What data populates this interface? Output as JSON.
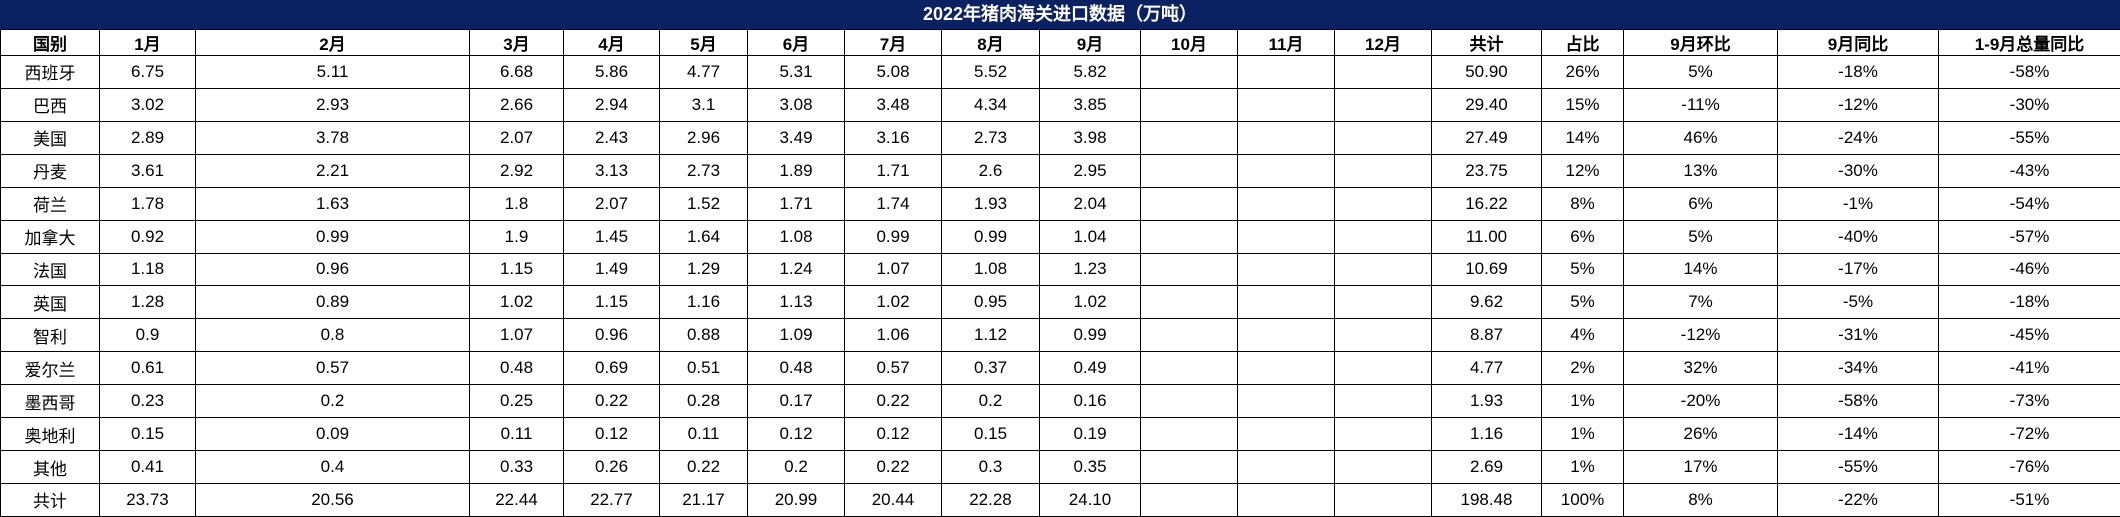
{
  "title": "2022年猪肉海关进口数据（万吨）",
  "colors": {
    "title_bg": "#0b2161",
    "title_text": "#ffffff",
    "grid_border": "#000000",
    "cell_bg": "#ffffff",
    "cell_text": "#000000"
  },
  "table": {
    "headers": [
      "国别",
      "1月",
      "2月",
      "3月",
      "4月",
      "5月",
      "6月",
      "7月",
      "8月",
      "9月",
      "10月",
      "11月",
      "12月",
      "共计",
      "占比",
      "9月环比",
      "9月同比",
      "1-9月总量同比"
    ],
    "rows": [
      [
        "西班牙",
        "6.75",
        "5.11",
        "6.68",
        "5.86",
        "4.77",
        "5.31",
        "5.08",
        "5.52",
        "5.82",
        "",
        "",
        "",
        "50.90",
        "26%",
        "5%",
        "-18%",
        "-58%"
      ],
      [
        "巴西",
        "3.02",
        "2.93",
        "2.66",
        "2.94",
        "3.1",
        "3.08",
        "3.48",
        "4.34",
        "3.85",
        "",
        "",
        "",
        "29.40",
        "15%",
        "-11%",
        "-12%",
        "-30%"
      ],
      [
        "美国",
        "2.89",
        "3.78",
        "2.07",
        "2.43",
        "2.96",
        "3.49",
        "3.16",
        "2.73",
        "3.98",
        "",
        "",
        "",
        "27.49",
        "14%",
        "46%",
        "-24%",
        "-55%"
      ],
      [
        "丹麦",
        "3.61",
        "2.21",
        "2.92",
        "3.13",
        "2.73",
        "1.89",
        "1.71",
        "2.6",
        "2.95",
        "",
        "",
        "",
        "23.75",
        "12%",
        "13%",
        "-30%",
        "-43%"
      ],
      [
        "荷兰",
        "1.78",
        "1.63",
        "1.8",
        "2.07",
        "1.52",
        "1.71",
        "1.74",
        "1.93",
        "2.04",
        "",
        "",
        "",
        "16.22",
        "8%",
        "6%",
        "-1%",
        "-54%"
      ],
      [
        "加拿大",
        "0.92",
        "0.99",
        "1.9",
        "1.45",
        "1.64",
        "1.08",
        "0.99",
        "0.99",
        "1.04",
        "",
        "",
        "",
        "11.00",
        "6%",
        "5%",
        "-40%",
        "-57%"
      ],
      [
        "法国",
        "1.18",
        "0.96",
        "1.15",
        "1.49",
        "1.29",
        "1.24",
        "1.07",
        "1.08",
        "1.23",
        "",
        "",
        "",
        "10.69",
        "5%",
        "14%",
        "-17%",
        "-46%"
      ],
      [
        "英国",
        "1.28",
        "0.89",
        "1.02",
        "1.15",
        "1.16",
        "1.13",
        "1.02",
        "0.95",
        "1.02",
        "",
        "",
        "",
        "9.62",
        "5%",
        "7%",
        "-5%",
        "-18%"
      ],
      [
        "智利",
        "0.9",
        "0.8",
        "1.07",
        "0.96",
        "0.88",
        "1.09",
        "1.06",
        "1.12",
        "0.99",
        "",
        "",
        "",
        "8.87",
        "4%",
        "-12%",
        "-31%",
        "-45%"
      ],
      [
        "爱尔兰",
        "0.61",
        "0.57",
        "0.48",
        "0.69",
        "0.51",
        "0.48",
        "0.57",
        "0.37",
        "0.49",
        "",
        "",
        "",
        "4.77",
        "2%",
        "32%",
        "-34%",
        "-41%"
      ],
      [
        "墨西哥",
        "0.23",
        "0.2",
        "0.25",
        "0.22",
        "0.28",
        "0.17",
        "0.22",
        "0.2",
        "0.16",
        "",
        "",
        "",
        "1.93",
        "1%",
        "-20%",
        "-58%",
        "-73%"
      ],
      [
        "奥地利",
        "0.15",
        "0.09",
        "0.11",
        "0.12",
        "0.11",
        "0.12",
        "0.12",
        "0.15",
        "0.19",
        "",
        "",
        "",
        "1.16",
        "1%",
        "26%",
        "-14%",
        "-72%"
      ],
      [
        "其他",
        "0.41",
        "0.4",
        "0.33",
        "0.26",
        "0.22",
        "0.2",
        "0.22",
        "0.3",
        "0.35",
        "",
        "",
        "",
        "2.69",
        "1%",
        "17%",
        "-55%",
        "-76%"
      ],
      [
        "共计",
        "23.73",
        "20.56",
        "22.44",
        "22.77",
        "21.17",
        "20.99",
        "20.44",
        "22.28",
        "24.10",
        "",
        "",
        "",
        "198.48",
        "100%",
        "8%",
        "-22%",
        "-51%"
      ]
    ]
  }
}
